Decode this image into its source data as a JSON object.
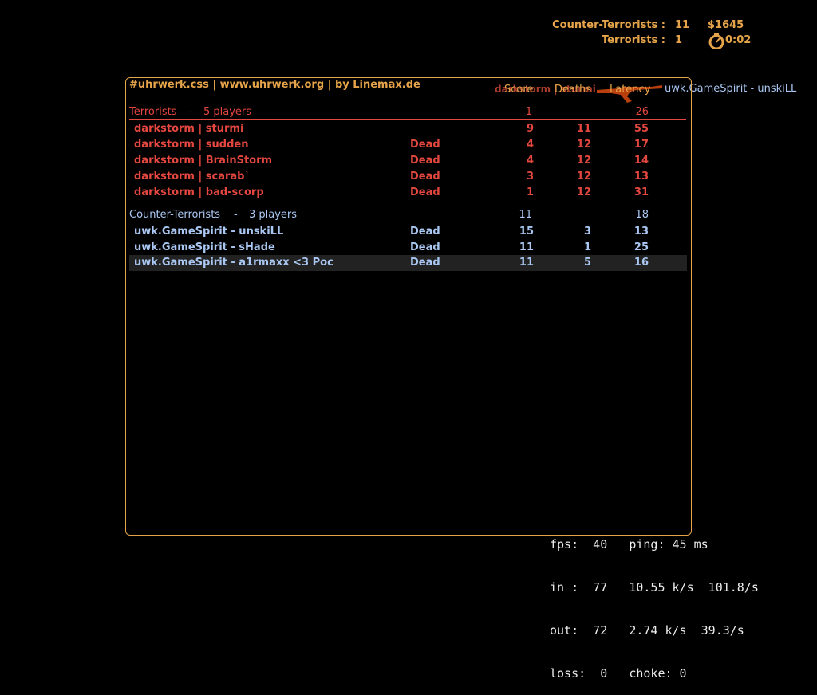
{
  "hud": {
    "ct_label": "Counter-Terrorists :",
    "ct_score": "11",
    "t_label": "Terrorists :",
    "t_score": "1",
    "money": "$1645",
    "timer": "0:02",
    "timer_icon": "stopwatch-icon",
    "accent": "#e6a44a"
  },
  "killfeed": {
    "killer": "darkstorm | sturmi",
    "victim": "uwk.GameSpirit - unskiLL",
    "weapon_icon": "ak47-icon"
  },
  "scoreboard": {
    "server": "#uhrwerk.css | www.uhrwerk.org | by Linemax.de",
    "columns": {
      "score": "Score",
      "deaths": "Deaths",
      "latency": "Latency"
    },
    "terrorists": {
      "label": "Terrorists",
      "sep": "-",
      "count": "5 players",
      "score": "1",
      "latency": "26",
      "color": "#e4473f",
      "players": [
        {
          "name": "darkstorm | sturmi",
          "status": "",
          "score": "9",
          "deaths": "11",
          "latency": "55"
        },
        {
          "name": "darkstorm | sudden",
          "status": "Dead",
          "score": "4",
          "deaths": "12",
          "latency": "17"
        },
        {
          "name": "darkstorm | BrainStorm",
          "status": "Dead",
          "score": "4",
          "deaths": "12",
          "latency": "14"
        },
        {
          "name": "darkstorm | scarab`",
          "status": "Dead",
          "score": "3",
          "deaths": "12",
          "latency": "13"
        },
        {
          "name": "darkstorm | bad-scorp",
          "status": "Dead",
          "score": "1",
          "deaths": "12",
          "latency": "31"
        }
      ]
    },
    "counter_terrorists": {
      "label": "Counter-Terrorists",
      "sep": "-",
      "count": "3 players",
      "score": "11",
      "latency": "18",
      "color": "#a9c7f2",
      "players": [
        {
          "name": "uwk.GameSpirit - unskiLL",
          "status": "Dead",
          "score": "15",
          "deaths": "3",
          "latency": "13"
        },
        {
          "name": "uwk.GameSpirit - sHade",
          "status": "Dead",
          "score": "11",
          "deaths": "1",
          "latency": "25"
        },
        {
          "name": "uwk.GameSpirit - a1rmaxx <3 Poc",
          "status": "Dead",
          "score": "11",
          "deaths": "5",
          "latency": "16"
        }
      ]
    }
  },
  "netgraph": {
    "line1": "fps:  40   ping: 45 ms",
    "line2": "in :  77   10.55 k/s  101.8/s",
    "line3": "out:  72   2.74 k/s  39.3/s",
    "line4": "loss:  0   choke: 0"
  }
}
